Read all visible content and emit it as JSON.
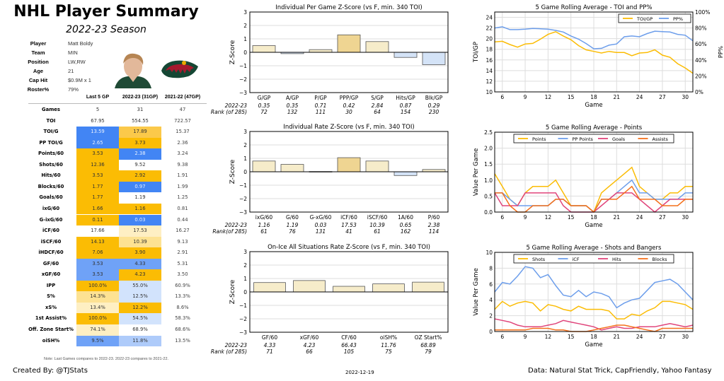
{
  "header": {
    "title": "NHL Player Summary",
    "subtitle": "2022-23 Season"
  },
  "player_info": [
    {
      "label": "Player",
      "value": "Matt Boldy"
    },
    {
      "label": "Team",
      "value": "MIN"
    },
    {
      "label": "Position",
      "value": "LW,RW"
    },
    {
      "label": "Age",
      "value": "21"
    },
    {
      "label": "Cap Hit",
      "value": "$0.9M x 1"
    },
    {
      "label": "Roster%",
      "value": "79%"
    }
  ],
  "images": {
    "photo": "player-headshot",
    "logo": "minnesota-wild-logo"
  },
  "table": {
    "headers": [
      "Last 5 GP",
      "2022-23 (31GP)",
      "2021-22 (47GP)"
    ],
    "rows": [
      {
        "label": "Games",
        "values": [
          "5",
          "31",
          "47"
        ],
        "colors": [
          "#ffffff",
          "#ffffff",
          "#ffffff"
        ]
      },
      {
        "label": "TOI",
        "values": [
          "67.95",
          "554.55",
          "722.57"
        ],
        "colors": [
          "#ffffff",
          "#ffffff",
          "#ffffff"
        ]
      },
      {
        "label": "TOI/G",
        "values": [
          "13.59",
          "17.89",
          "15.37"
        ],
        "colors": [
          "#4285f4",
          "#fbc94a",
          "#ffffff"
        ]
      },
      {
        "label": "PP TOI/G",
        "values": [
          "2.65",
          "3.73",
          "2.36"
        ],
        "colors": [
          "#4285f4",
          "#fbbc04",
          "#ffffff"
        ]
      },
      {
        "label": "Points/60",
        "values": [
          "3.53",
          "2.38",
          "3.24"
        ],
        "colors": [
          "#fbbc04",
          "#4285f4",
          "#ffffff"
        ]
      },
      {
        "label": "Shots/60",
        "values": [
          "12.36",
          "9.52",
          "9.38"
        ],
        "colors": [
          "#fbbc04",
          "#ffffff",
          "#ffffff"
        ]
      },
      {
        "label": "Hits/60",
        "values": [
          "3.53",
          "2.92",
          "1.91"
        ],
        "colors": [
          "#fbbc04",
          "#fbbc04",
          "#ffffff"
        ]
      },
      {
        "label": "Blocks/60",
        "values": [
          "1.77",
          "0.97",
          "1.99"
        ],
        "colors": [
          "#fbbc04",
          "#4285f4",
          "#ffffff"
        ]
      },
      {
        "label": "Goals/60",
        "values": [
          "1.77",
          "1.19",
          "1.25"
        ],
        "colors": [
          "#fbbc04",
          "#ffffff",
          "#ffffff"
        ]
      },
      {
        "label": "ixG/60",
        "values": [
          "1.66",
          "1.16",
          "0.81"
        ],
        "colors": [
          "#fbbc04",
          "#fbbc04",
          "#ffffff"
        ]
      },
      {
        "label": "G-ixG/60",
        "values": [
          "0.11",
          "0.03",
          "0.44"
        ],
        "colors": [
          "#fbbc04",
          "#4285f4",
          "#ffffff"
        ]
      },
      {
        "label": "iCF/60",
        "values": [
          "17.66",
          "17.53",
          "16.27"
        ],
        "colors": [
          "#ffffff",
          "#feefc3",
          "#ffffff"
        ]
      },
      {
        "label": "iSCF/60",
        "values": [
          "14.13",
          "10.39",
          "9.13"
        ],
        "colors": [
          "#fbbc04",
          "#fde293",
          "#ffffff"
        ]
      },
      {
        "label": "iHDCF/60",
        "values": [
          "7.06",
          "3.90",
          "2.91"
        ],
        "colors": [
          "#fbbc04",
          "#fbbc04",
          "#ffffff"
        ]
      },
      {
        "label": "GF/60",
        "values": [
          "3.53",
          "4.33",
          "5.31"
        ],
        "colors": [
          "#6fa2f7",
          "#6fa2f7",
          "#ffffff"
        ]
      },
      {
        "label": "xGF/60",
        "values": [
          "3.53",
          "4.23",
          "3.50"
        ],
        "colors": [
          "#6fa2f7",
          "#fbbc04",
          "#ffffff"
        ]
      },
      {
        "label": "IPP",
        "values": [
          "100.0%",
          "55.0%",
          "60.9%"
        ],
        "colors": [
          "#fbbc04",
          "#d2e3fc",
          "#ffffff"
        ]
      },
      {
        "label": "S%",
        "values": [
          "14.3%",
          "12.5%",
          "13.3%"
        ],
        "colors": [
          "#fde293",
          "#d2e3fc",
          "#ffffff"
        ]
      },
      {
        "label": "xS%",
        "values": [
          "13.4%",
          "12.2%",
          "8.6%"
        ],
        "colors": [
          "#feefc3",
          "#fbbc04",
          "#ffffff"
        ]
      },
      {
        "label": "1st Assist%",
        "values": [
          "100.0%",
          "54.5%",
          "58.3%"
        ],
        "colors": [
          "#fbbc04",
          "#d2e3fc",
          "#ffffff"
        ]
      },
      {
        "label": "Off. Zone Start%",
        "values": [
          "74.1%",
          "68.9%",
          "68.6%"
        ],
        "colors": [
          "#feefc3",
          "#ffffff",
          "#ffffff"
        ]
      },
      {
        "label": "oiSH%",
        "values": [
          "9.5%",
          "11.8%",
          "13.5%"
        ],
        "colors": [
          "#6fa2f7",
          "#aecbfa",
          "#ffffff"
        ]
      }
    ],
    "note": "Note: Last Games compares to 2022-23. 2022-23 compares to 2021-22."
  },
  "footer": {
    "created_by": "Created By: @TJStats",
    "date": "2022-12-19",
    "source": "Data: Natural Stat Trick, CapFriendly, Yahoo Fantasy"
  },
  "chart_data": [
    {
      "id": "zbar1",
      "type": "bar",
      "title": "Individual Per Game Z-Score (vs F, min. 340 TOI)",
      "ylabel": "Z-Score",
      "ylim": [
        -3,
        3
      ],
      "yticks": [
        "3",
        "2",
        "1",
        "0",
        "−1",
        "−2",
        "−3"
      ],
      "categories": [
        "G/GP",
        "A/GP",
        "P/GP",
        "PPP/GP",
        "S/GP",
        "Hits/GP",
        "Blk/GP"
      ],
      "values": [
        0.5,
        -0.1,
        0.2,
        1.3,
        0.8,
        -0.38,
        -0.92
      ],
      "row1_label": "2022-23",
      "row1": [
        "0.35",
        "0.35",
        "0.71",
        "0.42",
        "2.84",
        "0.87",
        "0.29"
      ],
      "row2_label": "Rank (of 285)",
      "row2": [
        "72",
        "132",
        "111",
        "30",
        "64",
        "154",
        "230"
      ]
    },
    {
      "id": "zbar2",
      "type": "bar",
      "title": "Individual Rate Z-Score (vs F, min. 340 TOI)",
      "ylabel": "Z-Score",
      "ylim": [
        -3,
        3
      ],
      "yticks": [
        "3",
        "2",
        "1",
        "0",
        "−1",
        "−2",
        "−3"
      ],
      "categories": [
        "ixG/60",
        "G/60",
        "G-xG/60",
        "iCF/60",
        "iSCF/60",
        "1A/60",
        "P/60"
      ],
      "values": [
        0.8,
        0.55,
        0.02,
        1.05,
        0.8,
        -0.28,
        0.17
      ],
      "row1_label": "2022-23",
      "row1": [
        "1.16",
        "1.19",
        "0.03",
        "17.53",
        "10.39",
        "0.65",
        "2.38"
      ],
      "row2_label": "Rank(of 285)",
      "row2": [
        "61",
        "76",
        "131",
        "41",
        "61",
        "162",
        "114"
      ]
    },
    {
      "id": "zbar3",
      "type": "bar",
      "title": "On-Ice All Situations Rate Z-Score (vs F, min. 340 TOI)",
      "ylabel": "Z-Score",
      "ylim": [
        -3,
        3
      ],
      "yticks": [
        "3",
        "2",
        "1",
        "0",
        "−1",
        "−2",
        "−3"
      ],
      "categories": [
        "GF/60",
        "xGF/60",
        "CF/60",
        "oiSH%",
        "OZ Start%"
      ],
      "values": [
        0.7,
        0.85,
        0.42,
        0.6,
        0.73
      ],
      "row1_label": "2022-23",
      "row1": [
        "4.33",
        "4.23",
        "66.43",
        "11.76",
        "68.89"
      ],
      "row2_label": "Rank (of 285)",
      "row2": [
        "71",
        "66",
        "105",
        "75",
        "79"
      ]
    },
    {
      "id": "line1",
      "type": "line",
      "title": "5 Game Rolling Average - TOI and PP%",
      "xlabel": "Game",
      "ylabel": "TOI/GP",
      "ylabel2": "PP%",
      "xlim": [
        5,
        31
      ],
      "xticks": [
        6,
        9,
        12,
        15,
        18,
        21,
        24,
        27,
        30
      ],
      "ylim": [
        10,
        25
      ],
      "yticks": [
        10,
        12,
        14,
        16,
        18,
        20,
        22,
        24
      ],
      "ylim2": [
        0,
        100
      ],
      "yticks2": [
        "0%",
        "20%",
        "40%",
        "60%",
        "80%",
        "100%"
      ],
      "legend": "top-right",
      "x": [
        5,
        6,
        7,
        8,
        9,
        10,
        11,
        12,
        13,
        14,
        15,
        16,
        17,
        18,
        19,
        20,
        21,
        22,
        23,
        24,
        25,
        26,
        27,
        28,
        29,
        30,
        31
      ],
      "series": [
        {
          "name": "TOI/GP",
          "axis": "left",
          "color": "#fbbc04",
          "values": [
            19.4,
            19.5,
            18.9,
            18.4,
            19.0,
            19.1,
            19.9,
            20.8,
            21.3,
            20.5,
            19.8,
            18.7,
            17.9,
            17.6,
            17.3,
            17.6,
            17.4,
            17.4,
            16.8,
            17.3,
            17.4,
            17.9,
            16.9,
            16.5,
            15.3,
            14.5,
            13.5
          ]
        },
        {
          "name": "PP%",
          "axis": "right",
          "color": "#6d9eeb",
          "values": [
            80,
            81.5,
            78,
            78,
            78.5,
            79.5,
            79,
            78.5,
            77,
            75,
            70,
            66,
            60.5,
            54,
            54.5,
            58.5,
            60,
            69,
            70,
            69,
            73,
            76,
            75.5,
            75,
            72,
            71,
            64
          ]
        }
      ]
    },
    {
      "id": "line2",
      "type": "line",
      "title": "5 Game Rolling Average - Points",
      "xlabel": "Game",
      "ylabel": "Value Per Game",
      "xlim": [
        5,
        31
      ],
      "xticks": [
        6,
        9,
        12,
        15,
        18,
        21,
        24,
        27,
        30
      ],
      "ylim": [
        0,
        2.5
      ],
      "yticks": [
        "0.0",
        "0.5",
        "1.0",
        "1.5",
        "2.0",
        "2.5"
      ],
      "legend": "top-center",
      "x": [
        5,
        6,
        7,
        8,
        9,
        10,
        11,
        12,
        13,
        14,
        15,
        16,
        17,
        18,
        19,
        20,
        21,
        22,
        23,
        24,
        25,
        26,
        27,
        28,
        29,
        30,
        31
      ],
      "series": [
        {
          "name": "Points",
          "color": "#fbbc04",
          "values": [
            1.2,
            0.8,
            0.4,
            0.2,
            0.6,
            0.8,
            0.8,
            0.8,
            1.0,
            0.6,
            0.2,
            0.2,
            0.2,
            0.0,
            0.6,
            0.8,
            1.0,
            1.2,
            1.4,
            0.8,
            0.6,
            0.4,
            0.4,
            0.6,
            0.6,
            0.8,
            0.8
          ]
        },
        {
          "name": "PP Points",
          "color": "#6d9eeb",
          "values": [
            0.6,
            0.6,
            0.4,
            0.2,
            0.2,
            0.2,
            0.2,
            0.2,
            0.4,
            0.4,
            0.2,
            0.2,
            0.2,
            0.0,
            0.4,
            0.4,
            0.6,
            0.8,
            1.0,
            0.6,
            0.6,
            0.4,
            0.4,
            0.4,
            0.4,
            0.6,
            0.6
          ]
        },
        {
          "name": "Goals",
          "color": "#e0457b",
          "values": [
            0.6,
            0.2,
            0.2,
            0.2,
            0.6,
            0.6,
            0.6,
            0.6,
            0.6,
            0.2,
            0.0,
            0.0,
            0.0,
            0.0,
            0.2,
            0.4,
            0.6,
            0.6,
            0.6,
            0.4,
            0.2,
            0.0,
            0.2,
            0.4,
            0.4,
            0.4,
            0.4
          ]
        },
        {
          "name": "Assists",
          "color": "#f4701b",
          "values": [
            0.6,
            0.6,
            0.2,
            0.0,
            0.0,
            0.2,
            0.2,
            0.2,
            0.4,
            0.4,
            0.2,
            0.2,
            0.2,
            0.0,
            0.4,
            0.4,
            0.4,
            0.6,
            0.8,
            0.4,
            0.4,
            0.4,
            0.2,
            0.2,
            0.2,
            0.4,
            0.4
          ]
        }
      ]
    },
    {
      "id": "line3",
      "type": "line",
      "title": "5 Game Rolling Average - Shots and Bangers",
      "xlabel": "Game",
      "ylabel": "Value Per Game",
      "xlim": [
        5,
        31
      ],
      "xticks": [
        6,
        9,
        12,
        15,
        18,
        21,
        24,
        27,
        30
      ],
      "ylim": [
        0,
        10
      ],
      "yticks": [
        "0",
        "2",
        "4",
        "6",
        "8",
        "10"
      ],
      "legend": "top-center",
      "x": [
        5,
        6,
        7,
        8,
        9,
        10,
        11,
        12,
        13,
        14,
        15,
        16,
        17,
        18,
        19,
        20,
        21,
        22,
        23,
        24,
        25,
        26,
        27,
        28,
        29,
        30,
        31
      ],
      "series": [
        {
          "name": "Shots",
          "color": "#fbbc04",
          "values": [
            2.8,
            3.8,
            3.2,
            3.6,
            3.8,
            3.6,
            2.6,
            3.4,
            3.2,
            2.8,
            2.6,
            3.2,
            2.8,
            2.8,
            2.8,
            2.6,
            1.6,
            1.6,
            2.2,
            2.0,
            2.6,
            3.0,
            3.8,
            3.8,
            3.6,
            3.4,
            2.8
          ]
        },
        {
          "name": "iCF",
          "color": "#6d9eeb",
          "values": [
            5.0,
            6.2,
            6.0,
            7.0,
            8.2,
            8.0,
            6.8,
            7.2,
            5.8,
            4.6,
            4.4,
            5.2,
            4.4,
            5.0,
            4.8,
            4.4,
            3.0,
            3.6,
            4.0,
            4.2,
            5.2,
            6.2,
            6.4,
            6.6,
            6.0,
            5.0,
            4.0
          ]
        },
        {
          "name": "Hits",
          "color": "#e0457b",
          "values": [
            1.6,
            1.4,
            1.2,
            0.8,
            0.6,
            0.6,
            0.6,
            0.8,
            1.0,
            1.4,
            1.2,
            1.0,
            0.8,
            0.6,
            0.2,
            0.4,
            0.6,
            0.4,
            0.4,
            0.6,
            0.6,
            0.6,
            0.8,
            1.0,
            0.8,
            0.6,
            0.8
          ]
        },
        {
          "name": "Blocks",
          "color": "#f4701b",
          "values": [
            0.2,
            0.2,
            0.2,
            0.2,
            0.2,
            0.4,
            0.4,
            0.4,
            0.2,
            0.2,
            0.0,
            0.0,
            0.0,
            0.2,
            0.4,
            0.6,
            0.8,
            0.8,
            0.6,
            0.4,
            0.2,
            0.0,
            0.4,
            0.4,
            0.4,
            0.4,
            0.4
          ]
        }
      ]
    }
  ]
}
